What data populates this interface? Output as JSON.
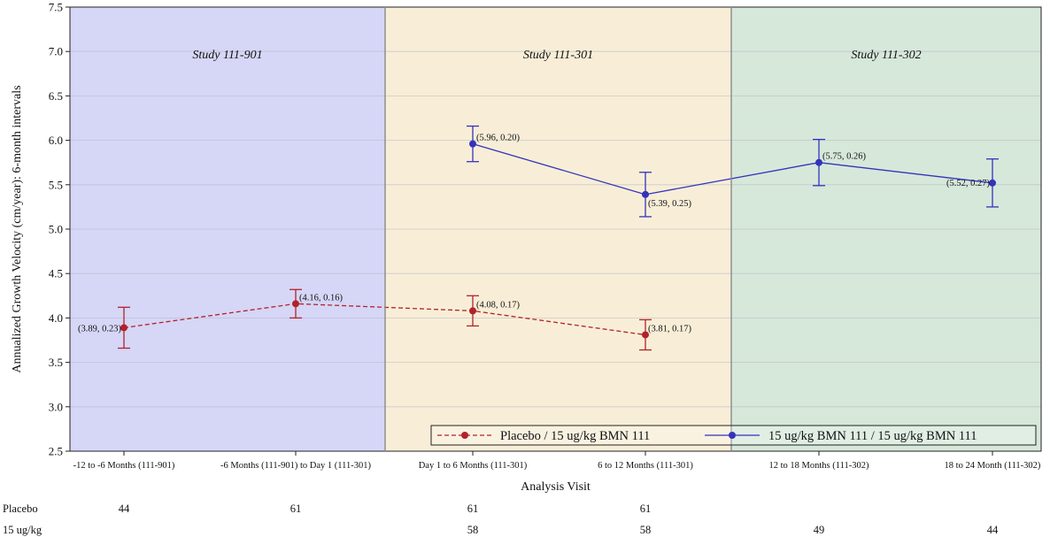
{
  "chart_data": {
    "type": "line",
    "ylabel": "Annualized Growth Velocity (cm/year): 6-month intervals",
    "xlabel": "Analysis Visit",
    "ylim": [
      2.5,
      7.5
    ],
    "yticks": [
      "2.5",
      "3.0",
      "3.5",
      "4.0",
      "4.5",
      "5.0",
      "5.5",
      "6.0",
      "6.5",
      "7.0",
      "7.5"
    ],
    "grid": true,
    "legend_position": "bottom-right",
    "categories": [
      "-12 to -6 Months (111-901)",
      "-6 Months (111-901) to Day 1 (111-301)",
      "Day 1 to 6 Months (111-301)",
      "6 to 12 Months (111-301)",
      "12 to 18  Months (111-302)",
      "18 to 24 Month  (111-302)"
    ],
    "regions": [
      {
        "label": "Study 111-901",
        "from": 0,
        "to": 1,
        "color": "#d6d6f7"
      },
      {
        "label": "Study 111-301",
        "from": 2,
        "to": 3,
        "color": "#f8eed7"
      },
      {
        "label": "Study 111-302",
        "from": 4,
        "to": 5,
        "color": "#d6e8da"
      }
    ],
    "series": [
      {
        "name": "Placebo / 15 ug/kg BMN 111",
        "color": "#b2222b",
        "line_style": "dashed",
        "values": [
          3.89,
          4.16,
          4.08,
          3.81,
          null,
          null
        ],
        "errors": [
          0.23,
          0.16,
          0.17,
          0.17,
          null,
          null
        ],
        "labels": [
          "(3.89, 0.23)",
          "(4.16, 0.16)",
          "(4.08, 0.17)",
          "(3.81, 0.17)",
          "",
          ""
        ]
      },
      {
        "name": "15 ug/kg BMN 111 / 15 ug/kg BMN 111",
        "color": "#3333bb",
        "line_style": "solid",
        "values": [
          null,
          null,
          5.96,
          5.39,
          5.75,
          5.52
        ],
        "errors": [
          null,
          null,
          0.2,
          0.25,
          0.26,
          0.27
        ],
        "labels": [
          "",
          "",
          "(5.96, 0.20)",
          "(5.39, 0.25)",
          "(5.75, 0.26)",
          "(5.52, 0.27)"
        ]
      }
    ],
    "risk_table": [
      {
        "label": "Placebo",
        "values": [
          "44",
          "61",
          "61",
          "61",
          "",
          ""
        ]
      },
      {
        "label": "15 ug/kg",
        "values": [
          "",
          "",
          "58",
          "58",
          "49",
          "44"
        ]
      }
    ]
  }
}
